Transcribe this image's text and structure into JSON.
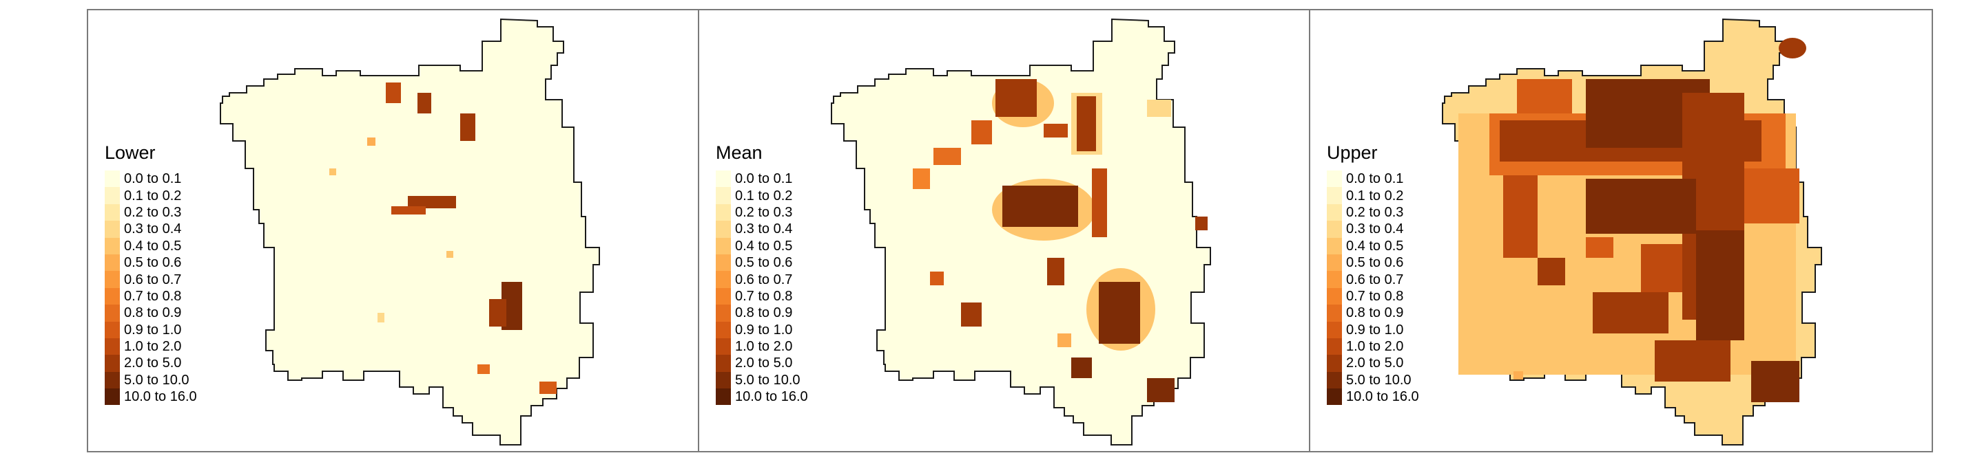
{
  "panels": [
    {
      "title": "Lower"
    },
    {
      "title": "Mean"
    },
    {
      "title": "Upper"
    }
  ],
  "legend": {
    "classes": [
      {
        "label": "0.0 to 0.1",
        "color": "#ffffe0"
      },
      {
        "label": "0.1 to 0.2",
        "color": "#fff5c4"
      },
      {
        "label": "0.2 to 0.3",
        "color": "#ffe9a6"
      },
      {
        "label": "0.3 to 0.4",
        "color": "#fed98a"
      },
      {
        "label": "0.4 to 0.5",
        "color": "#fec56c"
      },
      {
        "label": "0.5 to 0.6",
        "color": "#fdae52"
      },
      {
        "label": "0.6 to 0.7",
        "color": "#fb9a3c"
      },
      {
        "label": "0.7 to 0.8",
        "color": "#f4832a"
      },
      {
        "label": "0.8 to 0.9",
        "color": "#e66e1f"
      },
      {
        "label": "0.9 to 1.0",
        "color": "#d65b15"
      },
      {
        "label": "1.0 to 2.0",
        "color": "#bf4a0e"
      },
      {
        "label": "2.0 to 5.0",
        "color": "#a03a08"
      },
      {
        "label": "5.0 to 10.0",
        "color": "#7d2c06"
      },
      {
        "label": "10.0 to 16.0",
        "color": "#5a1e04"
      }
    ]
  }
}
